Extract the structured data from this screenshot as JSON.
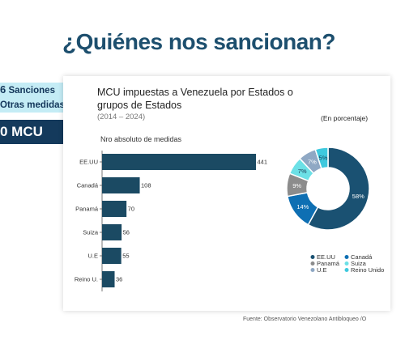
{
  "page": {
    "title": "¿Quiénes nos sancionan?",
    "side_line1_num": "6",
    "side_line1_text": "Sanciones",
    "side_line2": "Otras medidas",
    "side_mcu": "0 MCU",
    "source": "Fuente: Observatorio Venezolano Antibloqueo /O"
  },
  "chart_data": [
    {
      "type": "bar",
      "orientation": "horizontal",
      "title": "MCU impuestas a Venezuela por Estados o grupos de Estados",
      "subtitle": "(2014 – 2024)",
      "ylabel": "Nro absoluto de medidas",
      "categories": [
        "EE.UU",
        "Canadá",
        "Panamá",
        "Suiza",
        "U.E",
        "Reino U."
      ],
      "values": [
        441,
        108,
        70,
        56,
        55,
        36
      ],
      "xlim": [
        0,
        441
      ],
      "color": "#1b4a63"
    },
    {
      "type": "pie",
      "donut": true,
      "title": "(En porcentaje)",
      "labels": [
        "EE.UU",
        "Canadá",
        "Panamá",
        "Suiza",
        "U.E",
        "Reino Unido"
      ],
      "values": [
        58,
        14,
        9,
        7,
        7,
        5
      ],
      "value_labels": [
        "58%",
        "14%",
        "9%",
        "7%",
        "7%",
        "5%"
      ],
      "colors": [
        "#1a5172",
        "#0e6fb3",
        "#8c8c8c",
        "#6ce0e6",
        "#8fa8c4",
        "#3ec9de"
      ],
      "legend_position": "bottom"
    }
  ]
}
